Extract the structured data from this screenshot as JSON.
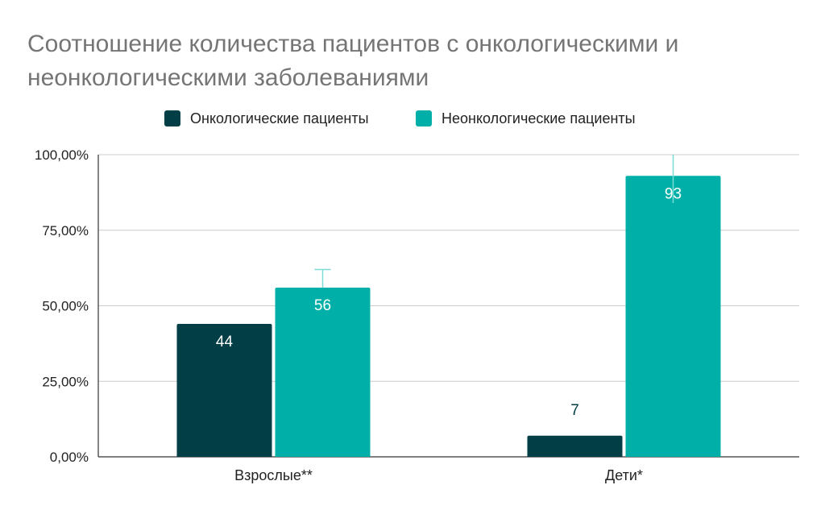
{
  "chart_data": {
    "type": "bar",
    "title": "Соотношение количества пациентов с онкологическими и неонкологическими заболеваниями",
    "categories": [
      "Взрослые**",
      "Дети*"
    ],
    "series": [
      {
        "name": "Онкологические пациенты",
        "color": "#013e45",
        "values": [
          44,
          7
        ],
        "data_labels": [
          "44",
          "7"
        ],
        "label_color": "#ffffff"
      },
      {
        "name": "Неонкологические пациенты",
        "color": "#00b0a8",
        "values": [
          56,
          93
        ],
        "data_labels": [
          "56",
          "93"
        ],
        "label_color": "#ffffff",
        "error_bars": [
          {
            "low": 56,
            "high": 62
          },
          {
            "low": 84,
            "high": 100
          }
        ]
      }
    ],
    "ylim": [
      0,
      100
    ],
    "y_ticks": [
      0,
      25,
      50,
      75,
      100
    ],
    "y_tick_labels": [
      "0,00%",
      "25,00%",
      "50,00%",
      "75,00%",
      "100,00%"
    ],
    "xlabel": "",
    "ylabel": "",
    "grid": true,
    "legend_position": "top"
  }
}
